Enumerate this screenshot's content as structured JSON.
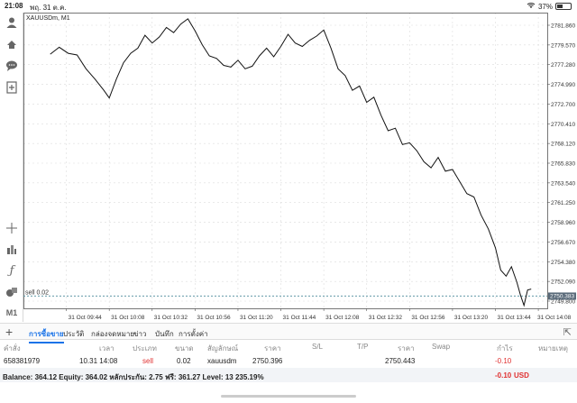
{
  "status_bar": {
    "time": "21:08",
    "date": "พฤ. 31 ต.ค.",
    "wifi_icon": "wifi-icon",
    "battery": "37%"
  },
  "toolbar": {
    "icons": [
      "account-icon",
      "trade-icon",
      "chat-icon",
      "new-chart-icon",
      "crosshair-icon",
      "indicators-icon",
      "objects-icon",
      "shapes-icon",
      "timeframe-m1"
    ],
    "timeframe_label": "M1"
  },
  "chart_data": {
    "type": "line",
    "title": "XAUUSDm, M1",
    "x_tick_labels": [
      "31 Oct 09:44",
      "31 Oct 10:08",
      "31 Oct 10:32",
      "31 Oct 10:56",
      "31 Oct 11:20",
      "31 Oct 11:44",
      "31 Oct 12:08",
      "31 Oct 12:32",
      "31 Oct 12:56",
      "31 Oct 13:20",
      "31 Oct 13:44",
      "31 Oct 14:08"
    ],
    "y_tick_labels": [
      "2781.860",
      "2779.570",
      "2777.280",
      "2774.990",
      "2772.700",
      "2770.410",
      "2768.120",
      "2765.830",
      "2763.540",
      "2761.250",
      "2758.960",
      "2756.670",
      "2754.380",
      "2752.090",
      "2749.800"
    ],
    "ylim": [
      2749.8,
      2781.86
    ],
    "x": [
      "09:35",
      "09:40",
      "09:45",
      "09:50",
      "09:55",
      "10:00",
      "10:05",
      "10:08",
      "10:12",
      "10:16",
      "10:20",
      "10:24",
      "10:28",
      "10:32",
      "10:36",
      "10:40",
      "10:44",
      "10:48",
      "10:52",
      "10:56",
      "11:00",
      "11:04",
      "11:08",
      "11:12",
      "11:16",
      "11:20",
      "11:24",
      "11:28",
      "11:32",
      "11:36",
      "11:40",
      "11:44",
      "11:48",
      "11:52",
      "11:56",
      "12:00",
      "12:04",
      "12:08",
      "12:12",
      "12:16",
      "12:20",
      "12:24",
      "12:28",
      "12:32",
      "12:36",
      "12:40",
      "12:44",
      "12:48",
      "12:52",
      "12:56",
      "13:00",
      "13:04",
      "13:08",
      "13:12",
      "13:16",
      "13:20",
      "13:24",
      "13:28",
      "13:32",
      "13:36",
      "13:40",
      "13:44",
      "13:47",
      "13:50",
      "13:53",
      "13:56",
      "13:58",
      "14:00",
      "14:02",
      "14:04"
    ],
    "series": [
      {
        "values": [
          2778.5,
          2779.3,
          2778.6,
          2778.4,
          2776.8,
          2775.6,
          2774.3,
          2773.4,
          2775.6,
          2777.5,
          2778.6,
          2779.2,
          2780.7,
          2779.8,
          2780.5,
          2781.6,
          2781.0,
          2782.0,
          2782.6,
          2781.2,
          2779.6,
          2778.3,
          2778.0,
          2777.2,
          2777.0,
          2777.8,
          2776.8,
          2777.1,
          2778.3,
          2779.2,
          2778.2,
          2779.4,
          2780.8,
          2779.8,
          2779.4,
          2780.1,
          2780.6,
          2781.3,
          2779.2,
          2776.8,
          2776.0,
          2774.3,
          2774.8,
          2772.9,
          2773.5,
          2771.4,
          2769.6,
          2769.9,
          2768.0,
          2768.2,
          2767.3,
          2766.0,
          2765.3,
          2766.5,
          2764.9,
          2765.1,
          2763.7,
          2762.3,
          2761.9,
          2759.8,
          2758.2,
          2756.0,
          2753.4,
          2752.7,
          2753.8,
          2752.0,
          2750.5,
          2749.3,
          2751.1,
          2751.2
        ]
      }
    ],
    "current_price_label": "2750.383",
    "sell_line": {
      "label": "sell 0.02",
      "price": 2750.396
    },
    "grid": true
  },
  "tabs": {
    "add_icon": "plus-icon",
    "items": [
      "การซื้อขาย",
      "ประวัติ",
      "กล่องจดหมาย",
      "ข่าว",
      "บันทึก",
      "การตั้งค่า"
    ],
    "active": "การซื้อขาย",
    "export_icon": "export-icon"
  },
  "positions": {
    "headers": [
      "คำสั่ง",
      "เวลา",
      "ประเภท",
      "ขนาด",
      "สัญลักษณ์",
      "ราคา",
      "S/L",
      "T/P",
      "ราคา",
      "Swap",
      "กำไร",
      "หมายเหตุ"
    ],
    "rows": [
      {
        "order": "658381979",
        "time": "10.31 14:08",
        "type": "sell",
        "size": "0.02",
        "symbol": "xauusdm",
        "price": "2750.396",
        "sl": "",
        "tp": "",
        "current": "2750.443",
        "swap": "",
        "profit": "-0.10",
        "comment": ""
      }
    ],
    "balance": "Balance: 364.12 Equity: 364.02 หลักประกัน: 2.75 ฟรี: 361.27 Level: 13 235.19%",
    "total_profit": "-0.10",
    "currency": "USD"
  }
}
